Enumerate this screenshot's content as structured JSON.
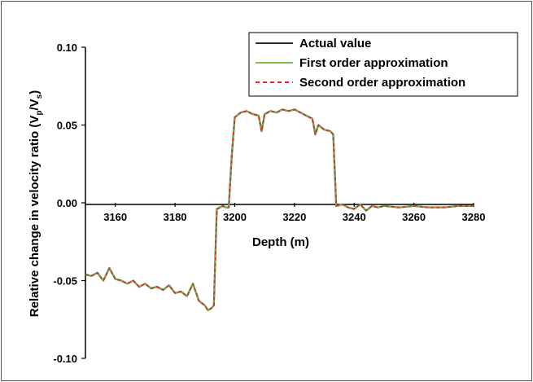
{
  "chart_data": {
    "type": "line",
    "xlabel": "Depth (m)",
    "ylabel_parts": [
      "Relative change in velocity ratio (V",
      "p",
      "/V",
      "s",
      ")"
    ],
    "xlim": [
      3150,
      3280
    ],
    "ylim": [
      -0.1,
      0.1
    ],
    "x_ticks": [
      3160,
      3180,
      3200,
      3220,
      3240,
      3260,
      3280
    ],
    "y_ticks": [
      -0.1,
      -0.05,
      0.0,
      0.05,
      0.1
    ],
    "y_tick_labels": [
      "-0.10",
      "-0.05",
      "0.00",
      "0.05",
      "0.10"
    ],
    "grid": false,
    "legend_position": "top-right",
    "series": [
      {
        "name": "Actual value",
        "color": "#333333",
        "style": "solid"
      },
      {
        "name": "First order approximation",
        "color": "#7cc242",
        "style": "solid"
      },
      {
        "name": "Second order approximation",
        "color": "#e8262a",
        "style": "dashed"
      }
    ],
    "x": [
      3150,
      3152,
      3154,
      3156,
      3158,
      3160,
      3162,
      3164,
      3166,
      3168,
      3170,
      3172,
      3174,
      3176,
      3178,
      3180,
      3182,
      3184,
      3186,
      3188,
      3190,
      3191,
      3192,
      3193,
      3194,
      3196,
      3197,
      3198,
      3199,
      3200,
      3202,
      3204,
      3206,
      3208,
      3209,
      3210,
      3212,
      3214,
      3216,
      3218,
      3220,
      3222,
      3224,
      3226,
      3227,
      3228,
      3230,
      3232,
      3233,
      3234,
      3236,
      3238,
      3240,
      3242,
      3244,
      3246,
      3248,
      3250,
      3255,
      3260,
      3265,
      3270,
      3275,
      3280
    ],
    "y": [
      -0.046,
      -0.047,
      -0.045,
      -0.05,
      -0.042,
      -0.049,
      -0.05,
      -0.052,
      -0.05,
      -0.054,
      -0.052,
      -0.055,
      -0.054,
      -0.056,
      -0.053,
      -0.058,
      -0.057,
      -0.06,
      -0.052,
      -0.063,
      -0.066,
      -0.069,
      -0.068,
      -0.066,
      -0.004,
      -0.002,
      -0.003,
      -0.003,
      0.03,
      0.055,
      0.058,
      0.059,
      0.057,
      0.056,
      0.046,
      0.057,
      0.059,
      0.058,
      0.06,
      0.059,
      0.06,
      0.058,
      0.056,
      0.054,
      0.044,
      0.05,
      0.047,
      0.046,
      0.044,
      -0.002,
      -0.001,
      -0.003,
      -0.004,
      -0.001,
      -0.005,
      -0.002,
      -0.003,
      -0.002,
      -0.003,
      -0.002,
      -0.003,
      -0.003,
      -0.002,
      -0.002
    ]
  }
}
